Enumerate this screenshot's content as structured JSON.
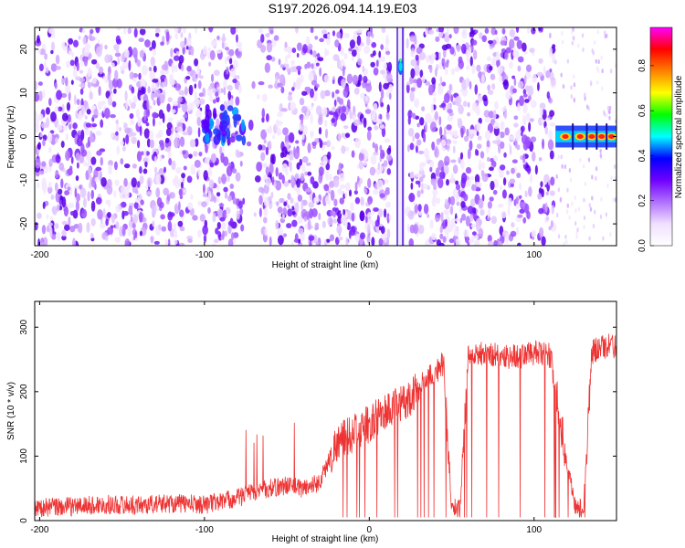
{
  "title": "S197.2026.094.14.19.E03",
  "chart_data": [
    {
      "type": "heatmap",
      "title": "S197.2026.094.14.19.E03",
      "xlabel": "Height of straight line (km)",
      "ylabel": "Frequency (Hz)",
      "xlim": [
        -203,
        150
      ],
      "ylim": [
        -25,
        25
      ],
      "x_ticks": [
        -200,
        -100,
        0,
        100
      ],
      "y_ticks": [
        -20,
        -10,
        0,
        10,
        20
      ],
      "colorbar": {
        "label": "Normalized spectral amplitude",
        "range": [
          0,
          0.97
        ],
        "ticks": [
          0.0,
          0.2,
          0.4,
          0.6,
          0.8
        ],
        "colors": [
          "#ffffff",
          "#f0e0ff",
          "#b070ff",
          "#7000ff",
          "#0000ff",
          "#00ffff",
          "#00ff00",
          "#ffff00",
          "#ff8000",
          "#ff0000",
          "#ff00ff"
        ]
      },
      "features": [
        {
          "label": "speckle background",
          "x_range": [
            -203,
            112
          ],
          "amplitude": 0.1
        },
        {
          "label": "cluster",
          "x": -88,
          "y": 3,
          "amplitude": 0.3
        },
        {
          "label": "narrow peak",
          "x": 19,
          "y": 16,
          "amplitude": 0.5
        },
        {
          "label": "band",
          "x_range": [
            113,
            150
          ],
          "y": 0,
          "amplitude": 0.9
        }
      ]
    },
    {
      "type": "line",
      "xlabel": "Height of straight line (km)",
      "ylabel": "SNR (10 * v/v)",
      "xlim": [
        -203,
        150
      ],
      "ylim": [
        0,
        340
      ],
      "x_ticks": [
        -200,
        -100,
        0,
        100
      ],
      "y_ticks": [
        0,
        100,
        200,
        300
      ],
      "series": [
        {
          "color": "#ee3333",
          "x": [
            -200,
            -180,
            -160,
            -140,
            -120,
            -100,
            -90,
            -80,
            -70,
            -60,
            -50,
            -40,
            -30,
            -20,
            -10,
            0,
            10,
            20,
            30,
            35,
            40,
            45,
            50,
            55,
            60,
            70,
            80,
            90,
            100,
            110,
            118,
            125,
            130,
            135,
            140,
            150
          ],
          "y": [
            20,
            22,
            25,
            24,
            27,
            25,
            30,
            35,
            45,
            50,
            55,
            50,
            60,
            120,
            135,
            150,
            170,
            180,
            205,
            220,
            230,
            245,
            20,
            20,
            255,
            260,
            255,
            255,
            260,
            255,
            120,
            20,
            20,
            260,
            270,
            270
          ]
        }
      ]
    }
  ]
}
